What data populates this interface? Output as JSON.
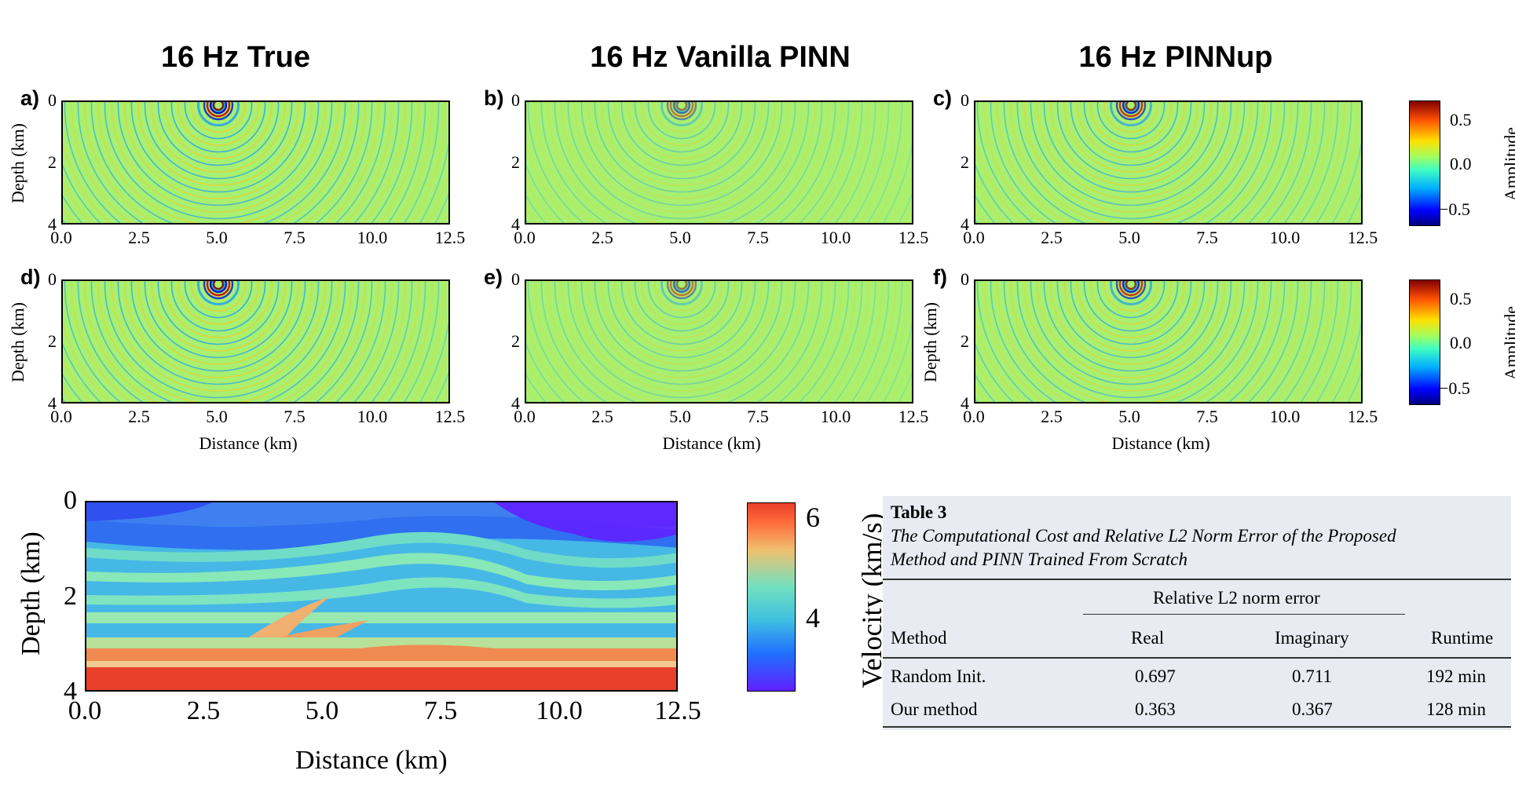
{
  "titles": {
    "true": "16 Hz True",
    "vanilla": "16 Hz Vanilla PINN",
    "pinnup": "16 Hz PINNup"
  },
  "panels": [
    "a)",
    "b)",
    "c)",
    "d)",
    "e)",
    "f)"
  ],
  "axes": {
    "depth_label": "Depth (km)",
    "distance_label": "Distance (km)",
    "x_ticks": [
      "0.0",
      "2.5",
      "5.0",
      "7.5",
      "10.0",
      "12.5"
    ],
    "y_ticks": [
      "0",
      "2",
      "4"
    ]
  },
  "amplitude_colorbar": {
    "label": "Amplitude",
    "ticks": [
      "0.5",
      "0.0",
      "−0.5"
    ]
  },
  "velocity_panel": {
    "ylabel": "Depth (km)",
    "xlabel": "Distance (km)",
    "x_ticks": [
      "0.0",
      "2.5",
      "5.0",
      "7.5",
      "10.0",
      "12.5"
    ],
    "y_ticks": [
      "0",
      "2",
      "4"
    ],
    "colorbar_label": "Velocity (km/s)",
    "colorbar_ticks": [
      "6",
      "4"
    ]
  },
  "table": {
    "caption_title": "Table 3",
    "caption_line1": "The Computational Cost and Relative L2 Norm Error of the Proposed",
    "caption_line2": "Method and PINN Trained From Scratch",
    "group_header": "Relative L2 norm error",
    "columns": [
      "Method",
      "Real",
      "Imaginary",
      "Runtime"
    ],
    "rows": [
      [
        "Random Init.",
        "0.697",
        "0.711",
        "192 min"
      ],
      [
        "Our method",
        "0.363",
        "0.367",
        "128 min"
      ]
    ]
  },
  "colors": {
    "wave_background": "#a8f070",
    "velocity_low": "#6020ff",
    "velocity_high": "#e8402a",
    "table_background": "#e8ebf1"
  }
}
